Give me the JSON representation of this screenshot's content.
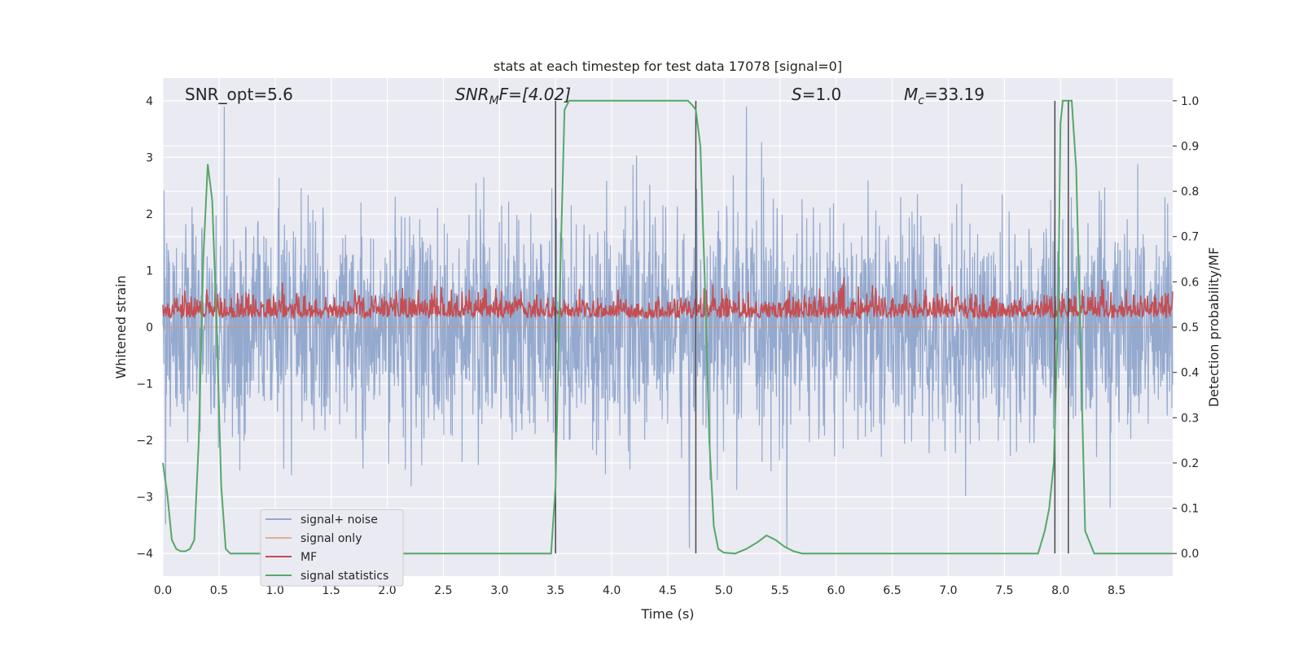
{
  "chart_data": {
    "type": "line",
    "title": "stats at each timestep for test data 17078 [signal=0]",
    "xlabel": "Time (s)",
    "ylabel": "Whitened strain",
    "y2label": "Detection probability/MF",
    "xlim": [
      0.0,
      9.0
    ],
    "ylim": [
      -4.4,
      4.4
    ],
    "y2lim": [
      -0.05,
      1.05
    ],
    "xticks": [
      "0.0",
      "0.5",
      "1.0",
      "1.5",
      "2.0",
      "2.5",
      "3.0",
      "3.5",
      "4.0",
      "4.5",
      "5.0",
      "5.5",
      "6.0",
      "6.5",
      "7.0",
      "7.5",
      "8.0",
      "8.5"
    ],
    "yticks": [
      "−4",
      "−3",
      "−2",
      "−1",
      "0",
      "1",
      "2",
      "3",
      "4"
    ],
    "y2ticks": [
      "0.0",
      "0.1",
      "0.2",
      "0.3",
      "0.4",
      "0.5",
      "0.6",
      "0.7",
      "0.8",
      "0.9",
      "1.0"
    ],
    "grid": true,
    "legend_position": "lower-left",
    "annotations": {
      "snr_opt": "SNR_opt=5.6",
      "snr_mf_main": "SNR",
      "snr_mf_sub": "M",
      "snr_mf_tail": "F=[4.02]",
      "s_main": "S",
      "s_tail": "=1.0",
      "mc_main": "M",
      "mc_sub": "c",
      "mc_tail": "=33.19"
    },
    "vertical_lines": [
      3.5,
      4.75,
      7.95,
      8.07
    ],
    "series": [
      {
        "name": "signal+ noise",
        "color": "#4c72b0",
        "opacity": 0.55,
        "axis": "left",
        "summary": {
          "typical_min": -2.2,
          "typical_max": 2.2,
          "peak_max": 3.9,
          "peak_min": -3.9
        }
      },
      {
        "name": "signal only",
        "color": "#dd8452",
        "axis": "left",
        "x": [
          0.0,
          9.0
        ],
        "y": [
          0.0,
          0.0
        ]
      },
      {
        "name": "MF",
        "color": "#c44e52",
        "axis": "right",
        "summary": {
          "baseline": 0.52,
          "min": 0.5,
          "max": 0.61
        }
      },
      {
        "name": "signal statistics",
        "color": "#55a868",
        "axis": "right",
        "x": [
          0.0,
          0.04,
          0.08,
          0.12,
          0.16,
          0.2,
          0.24,
          0.28,
          0.32,
          0.36,
          0.4,
          0.44,
          0.48,
          0.52,
          0.56,
          0.6,
          1.0,
          2.0,
          3.0,
          3.42,
          3.46,
          3.5,
          3.54,
          3.58,
          3.62,
          3.7,
          4.0,
          4.5,
          4.68,
          4.72,
          4.75,
          4.79,
          4.83,
          4.87,
          4.91,
          4.95,
          5.0,
          5.1,
          5.2,
          5.3,
          5.38,
          5.46,
          5.54,
          5.62,
          5.7,
          6.0,
          7.0,
          7.8,
          7.86,
          7.9,
          7.94,
          7.98,
          8.0,
          8.02,
          8.06,
          8.1,
          8.14,
          8.18,
          8.22,
          8.3,
          9.0
        ],
        "y": [
          0.2,
          0.13,
          0.03,
          0.01,
          0.005,
          0.005,
          0.01,
          0.03,
          0.25,
          0.65,
          0.86,
          0.78,
          0.5,
          0.15,
          0.01,
          0.0,
          0.0,
          0.0,
          0.0,
          0.0,
          0.0,
          0.15,
          0.6,
          0.98,
          1.0,
          1.0,
          1.0,
          1.0,
          1.0,
          0.99,
          0.98,
          0.9,
          0.6,
          0.25,
          0.06,
          0.01,
          0.002,
          0.0,
          0.01,
          0.025,
          0.04,
          0.03,
          0.015,
          0.005,
          0.0,
          0.0,
          0.0,
          0.0,
          0.05,
          0.1,
          0.2,
          0.55,
          0.95,
          1.0,
          1.0,
          1.0,
          0.85,
          0.45,
          0.05,
          0.0,
          0.0
        ]
      }
    ]
  }
}
